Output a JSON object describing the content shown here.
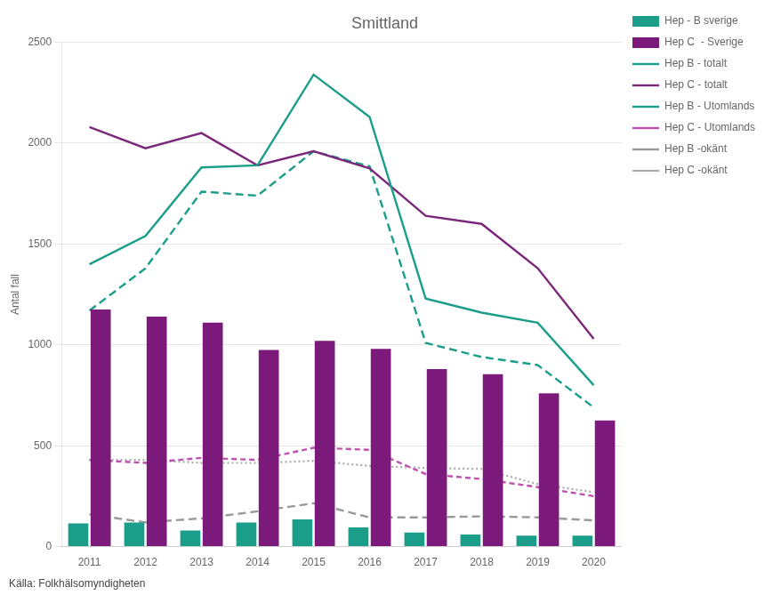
{
  "chart_data": {
    "type": "bar",
    "title": "Smittland",
    "ylabel": "Antal fall",
    "annotations": [
      {
        "text": "Källa: Folkhälsomyndigheten"
      }
    ],
    "categories": [
      "2011",
      "2012",
      "2013",
      "2014",
      "2015",
      "2016",
      "2017",
      "2018",
      "2019",
      "2020"
    ],
    "series": [
      {
        "name": "Hep - B sverige",
        "type": "bar",
        "color": "#1a9e89",
        "values": [
          115,
          120,
          80,
          120,
          135,
          95,
          70,
          60,
          55,
          55
        ]
      },
      {
        "name": "Hep C  - Sverige",
        "type": "bar",
        "color": "#7b1a7b",
        "values": [
          1175,
          1140,
          1110,
          975,
          1020,
          980,
          880,
          855,
          760,
          625
        ]
      },
      {
        "name": "Hep B - totalt",
        "type": "line",
        "line_style": "solid",
        "color": "#1a9e89",
        "values": [
          1400,
          1540,
          1880,
          1890,
          2340,
          2130,
          1230,
          1160,
          1110,
          800
        ]
      },
      {
        "name": "Hep C - totalt",
        "type": "line",
        "line_style": "solid",
        "color": "#7b287b",
        "values": [
          2080,
          1975,
          2050,
          1890,
          1960,
          1875,
          1640,
          1600,
          1380,
          1030
        ]
      },
      {
        "name": "Hep B - Utomlands",
        "type": "line",
        "line_style": "dashed",
        "color": "#1a9e89",
        "values": [
          1170,
          1380,
          1760,
          1740,
          1960,
          1885,
          1010,
          940,
          900,
          690
        ]
      },
      {
        "name": "Hep C - Utomlands",
        "type": "line",
        "line_style": "dashed",
        "color": "#c050b0",
        "values": [
          430,
          415,
          440,
          430,
          490,
          480,
          360,
          335,
          295,
          250
        ]
      },
      {
        "name": "Hep B -okänt",
        "type": "line",
        "line_style": "dashed",
        "color": "#999999",
        "values": [
          160,
          120,
          140,
          175,
          215,
          145,
          145,
          150,
          145,
          130
        ]
      },
      {
        "name": "Hep C -okänt",
        "type": "line",
        "line_style": "dotted",
        "color": "#aaaaaa",
        "values": [
          430,
          430,
          415,
          415,
          425,
          400,
          390,
          385,
          310,
          270
        ]
      }
    ],
    "ylim": [
      0,
      2500
    ],
    "yticks": [
      0,
      500,
      1000,
      1500,
      2000,
      2500
    ],
    "grid": true,
    "legend": "upper right"
  }
}
